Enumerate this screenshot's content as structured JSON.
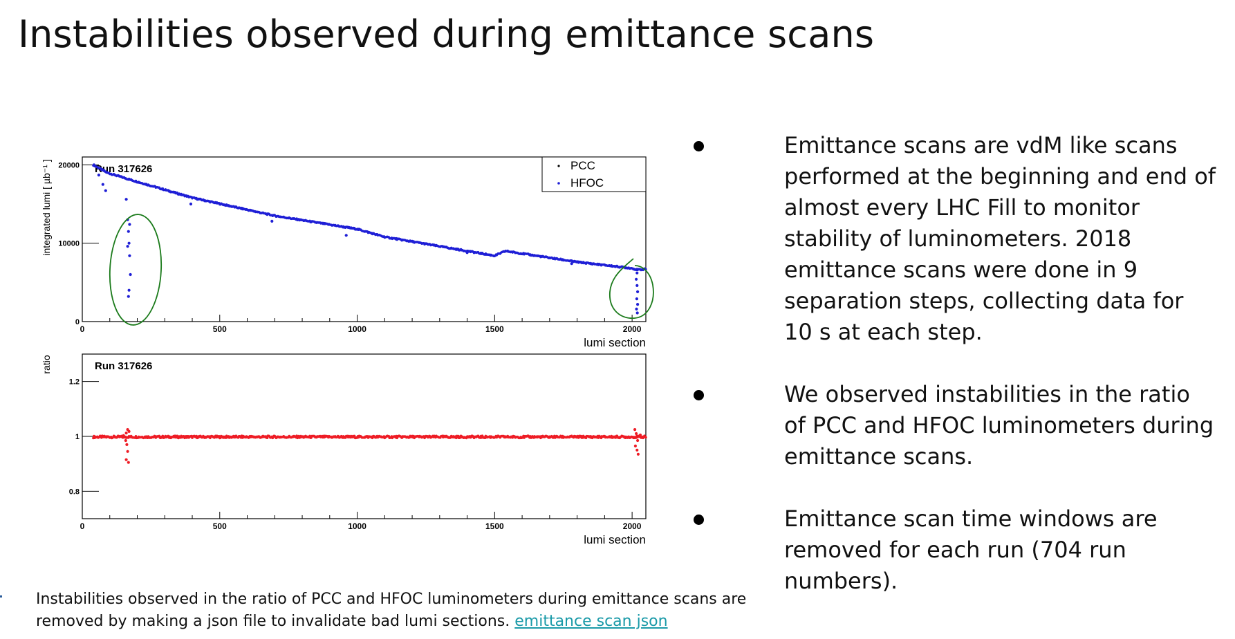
{
  "slide": {
    "title": "Instabilities observed during emittance scans"
  },
  "bullets": [
    "Emittance scans are vdM like scans performed at the beginning and end of almost every LHC Fill to monitor stability of luminometers. 2018 emittance scans were done in 9 separation steps, collecting data for 10 s at each step.",
    "We observed instabilities in the ratio of PCC and HFOC luminometers during emittance scans.",
    "Emittance scan time windows are removed for each run (704 run numbers)."
  ],
  "caption": {
    "text": "Instabilities observed in the ratio of PCC and HFOC luminometers during emittance scans are removed by making a json file to invalidate bad lumi sections.",
    "link_label": "emittance scan json"
  },
  "colors": {
    "pcc": "#000000",
    "hfoc": "#1f1fd6",
    "ratio": "#ee1c25",
    "annotation": "#1a7a1a",
    "link": "#1a9aa8"
  },
  "chart_data": [
    {
      "type": "scatter",
      "title": "Run 317626",
      "xlabel": "lumi section",
      "ylabel": "integrated lumi [ µb⁻¹ ]",
      "xlim": [
        0,
        2050
      ],
      "ylim": [
        0,
        21000
      ],
      "xticks": [
        0,
        500,
        1000,
        1500,
        2000
      ],
      "yticks": [
        0,
        10000,
        20000
      ],
      "legend": {
        "position": "top-right",
        "entries": [
          "PCC",
          "HFOC"
        ]
      },
      "series": [
        {
          "name": "HFOC",
          "trend": {
            "x": [
              40,
              90,
              175,
              400,
              700,
              1000,
              1100,
              1500,
              1540,
              1800,
              2000,
              2020,
              2050
            ],
            "y": [
              20000,
              19000,
              18100,
              15800,
              13500,
              11800,
              10800,
              8400,
              9000,
              7600,
              6800,
              6600,
              6700
            ]
          },
          "outliers": [
            [
              60,
              18700
            ],
            [
              75,
              17500
            ],
            [
              85,
              16700
            ],
            [
              160,
              15600
            ],
            [
              165,
              13000
            ],
            [
              168,
              11500
            ],
            [
              170,
              10000
            ],
            [
              172,
              8400
            ],
            [
              175,
              6000
            ],
            [
              170,
              4000
            ],
            [
              168,
              3200
            ],
            [
              172,
              12400
            ],
            [
              165,
              9600
            ],
            [
              395,
              15000
            ],
            [
              690,
              12800
            ],
            [
              960,
              11000
            ],
            [
              1400,
              8800
            ],
            [
              1780,
              7400
            ],
            [
              2015,
              5400
            ],
            [
              2018,
              4600
            ],
            [
              2020,
              3800
            ],
            [
              2017,
              2900
            ],
            [
              2020,
              2200
            ],
            [
              2016,
              1600
            ],
            [
              2019,
              1100
            ],
            [
              2018,
              6200
            ]
          ]
        }
      ]
    },
    {
      "type": "scatter",
      "title": "Run 317626",
      "xlabel": "lumi section",
      "ylabel": "ratio",
      "xlim": [
        0,
        2050
      ],
      "ylim": [
        0.7,
        1.3
      ],
      "xticks": [
        0,
        500,
        1000,
        1500,
        2000
      ],
      "yticks": [
        0.8,
        1,
        1.2
      ],
      "series": [
        {
          "name": "PCC/HFOC",
          "baseline": 0.998,
          "x_range": [
            40,
            2050
          ],
          "outliers": [
            [
              150,
              1.003
            ],
            [
              160,
              1.012
            ],
            [
              165,
              1.025
            ],
            [
              170,
              1.018
            ],
            [
              158,
              0.985
            ],
            [
              162,
              0.97
            ],
            [
              165,
              0.945
            ],
            [
              160,
              0.915
            ],
            [
              168,
              0.905
            ],
            [
              2010,
              1.025
            ],
            [
              2015,
              1.01
            ],
            [
              2020,
              0.985
            ],
            [
              2012,
              0.965
            ],
            [
              2018,
              0.95
            ],
            [
              2022,
              0.935
            ],
            [
              2030,
              1.005
            ]
          ]
        }
      ]
    }
  ]
}
